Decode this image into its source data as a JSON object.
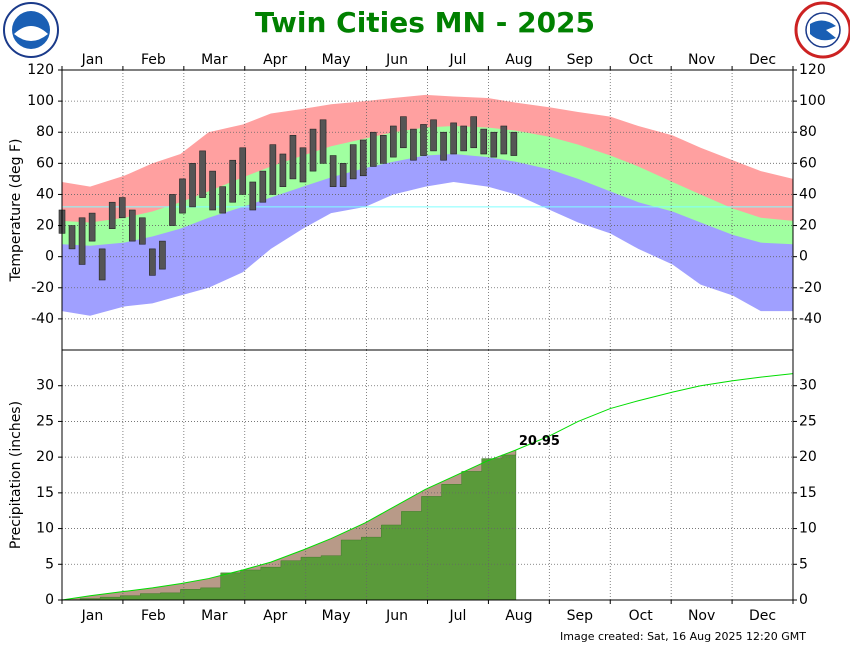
{
  "months": [
    "Jan",
    "Feb",
    "Mar",
    "Apr",
    "May",
    "Jun",
    "Jul",
    "Aug",
    "Sep",
    "Oct",
    "Nov",
    "Dec"
  ],
  "footer": "Image created: Sat, 16 Aug 2025 12:20 GMT",
  "chart_data": [
    {
      "type": "temperature",
      "title": "Twin Cities MN - 2025",
      "ylabel": "Temperature (deg F)",
      "xlim": [
        1,
        365
      ],
      "ylim": [
        -60,
        120
      ],
      "yticks": [
        -40,
        -20,
        0,
        20,
        40,
        60,
        80,
        100,
        120
      ],
      "grid": true,
      "x": [
        1,
        15,
        32,
        46,
        60,
        74,
        91,
        105,
        121,
        135,
        152,
        166,
        182,
        196,
        213,
        227,
        244,
        258,
        274,
        288,
        305,
        319,
        335,
        349,
        365
      ],
      "series": [
        {
          "color": "#ffa0a0",
          "values": [
            48,
            45,
            52,
            60,
            66,
            80,
            85,
            92,
            95,
            98,
            100,
            102,
            104,
            103,
            102,
            99,
            96,
            93,
            90,
            84,
            78,
            70,
            62,
            55,
            50
          ]
        },
        {
          "color": "#a0ffa0",
          "values": [
            23,
            22,
            25,
            29,
            35,
            42,
            51,
            58,
            65,
            71,
            76,
            80,
            83,
            84,
            83,
            81,
            77,
            72,
            65,
            58,
            48,
            40,
            31,
            25,
            23
          ]
        },
        {
          "color": "#a0a0ff",
          "values": [
            8,
            7,
            9,
            13,
            18,
            25,
            32,
            38,
            45,
            51,
            57,
            61,
            65,
            66,
            64,
            61,
            56,
            50,
            42,
            35,
            29,
            22,
            14,
            9,
            8
          ]
        },
        {
          "color": "#ffffff",
          "values": [
            -35,
            -38,
            -32,
            -30,
            -25,
            -20,
            -10,
            5,
            18,
            28,
            32,
            40,
            45,
            48,
            45,
            40,
            30,
            22,
            15,
            5,
            -5,
            -18,
            -25,
            -35,
            -35
          ]
        }
      ],
      "reference_line": {
        "value": 32,
        "color": "#80ffff"
      },
      "observed": {
        "color": "#555555",
        "x": [
          1,
          6,
          11,
          16,
          21,
          26,
          31,
          36,
          41,
          46,
          51,
          56,
          61,
          66,
          71,
          76,
          81,
          86,
          91,
          96,
          101,
          106,
          111,
          116,
          121,
          126,
          131,
          136,
          141,
          146,
          151,
          156,
          161,
          166,
          171,
          176,
          181,
          186,
          191,
          196,
          201,
          206,
          211,
          216,
          221,
          226
        ],
        "high": [
          30,
          20,
          25,
          28,
          5,
          35,
          38,
          30,
          25,
          5,
          10,
          40,
          50,
          60,
          68,
          55,
          45,
          62,
          70,
          48,
          55,
          72,
          66,
          78,
          70,
          82,
          88,
          65,
          60,
          72,
          75,
          80,
          78,
          84,
          90,
          82,
          85,
          88,
          80,
          86,
          84,
          90,
          82,
          80,
          84,
          80
        ],
        "low": [
          15,
          5,
          -5,
          10,
          -15,
          18,
          25,
          10,
          8,
          -12,
          -8,
          20,
          28,
          32,
          38,
          30,
          28,
          35,
          40,
          30,
          35,
          40,
          45,
          50,
          48,
          55,
          60,
          45,
          45,
          50,
          52,
          58,
          60,
          64,
          70,
          62,
          65,
          68,
          62,
          66,
          68,
          70,
          66,
          64,
          66,
          65
        ]
      }
    },
    {
      "type": "precipitation",
      "ylabel": "Precipitation (inches)",
      "xlim": [
        1,
        365
      ],
      "ylim": [
        0,
        35
      ],
      "yticks": [
        0,
        5,
        10,
        15,
        20,
        25,
        30
      ],
      "grid": true,
      "x": [
        1,
        15,
        32,
        46,
        60,
        74,
        91,
        105,
        121,
        135,
        152,
        166,
        182,
        196,
        213,
        227,
        244,
        258,
        274,
        288,
        305,
        319,
        335,
        349,
        365
      ],
      "shortfall_color": "#b89a88",
      "series": [
        {
          "color": "#00dd00",
          "values": [
            0,
            0.6,
            1.2,
            1.7,
            2.3,
            3,
            4.2,
            5.3,
            7,
            8.6,
            10.8,
            13,
            15.5,
            17.3,
            19.5,
            21,
            23,
            25,
            26.8,
            27.9,
            29.1,
            30,
            30.7,
            31.2,
            31.7
          ]
        },
        {
          "color": "#5a9a3a",
          "x": [
            1,
            10,
            20,
            30,
            40,
            50,
            60,
            70,
            80,
            90,
            100,
            110,
            120,
            130,
            140,
            150,
            160,
            170,
            180,
            190,
            200,
            210,
            220,
            227
          ],
          "values": [
            0,
            0.2,
            0.4,
            0.6,
            0.9,
            1,
            1.5,
            1.7,
            3.8,
            4.2,
            4.6,
            5.5,
            6,
            6.2,
            8.4,
            8.8,
            10.5,
            12.4,
            14.5,
            16.2,
            18,
            19.8,
            20.3,
            20.95
          ]
        }
      ]
    }
  ]
}
